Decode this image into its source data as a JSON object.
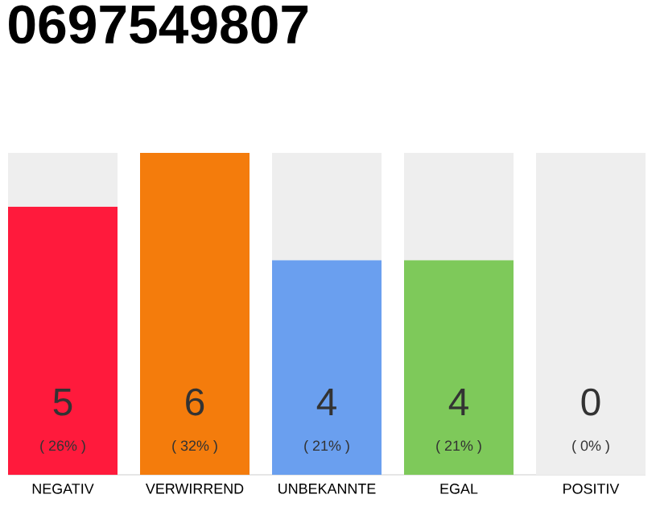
{
  "chart_data": {
    "type": "bar",
    "title": "0697549807",
    "stacked": true,
    "categories": [
      "NEGATIV",
      "VERWIRREND",
      "UNBEKANNTE",
      "EGAL",
      "POSITIV"
    ],
    "series": [
      {
        "values": [
          5,
          6,
          4,
          4,
          0
        ],
        "colors": [
          "#ff1a3c",
          "#f47c0c",
          "#6a9fef",
          "#7ec95a",
          "#b0b0b0"
        ],
        "value_labels": [
          "5",
          "6",
          "4",
          "4",
          null
        ]
      },
      {
        "values": [
          1,
          0,
          2,
          2,
          6
        ],
        "color": "#eeeeee"
      }
    ],
    "ylim": [
      0,
      6
    ],
    "annotations": [
      "( 26% )",
      "( 32% )",
      "( 21% )",
      "( 21% )",
      "( 0% )",
      {
        "text": "0",
        "x": "POSITIV",
        "y": 0
      }
    ]
  }
}
